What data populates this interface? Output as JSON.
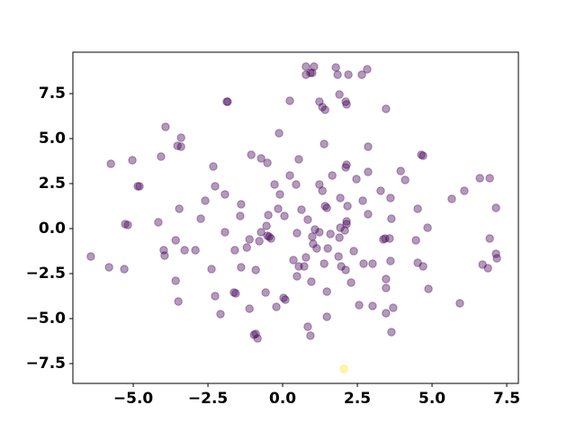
{
  "chart_data": {
    "type": "scatter",
    "alpha": 0.4,
    "xlim": [
      -7.02,
      7.89
    ],
    "ylim": [
      -8.6,
      9.8
    ],
    "xticks": [
      {
        "value": -5,
        "label": "−5.0"
      },
      {
        "value": -2.5,
        "label": "−2.5"
      },
      {
        "value": 0,
        "label": "0.0"
      },
      2.5,
      {
        "value": 5,
        "label": "5.0"
      },
      7.5
    ],
    "yticks": [
      {
        "value": -7.5,
        "label": "−7.5"
      },
      {
        "value": -5,
        "label": "−5.0"
      },
      {
        "value": -2.5,
        "label": "−2.5"
      },
      {
        "value": 0,
        "label": "0.0"
      },
      2.5,
      {
        "value": 5,
        "label": "5.0"
      },
      7.5
    ],
    "grid": false,
    "series": [
      {
        "color": "#440154",
        "x": [
          0.78,
          1.05,
          0.93,
          0.99,
          0.78,
          1.78,
          2.2,
          1.84,
          2.65,
          2.83,
          -1.87,
          -1.84,
          0.24,
          1.23,
          1.33,
          1.42,
          2.11,
          2.14,
          1.9,
          3.46,
          -3.92,
          -3.4,
          -3.52,
          -3.4,
          -4.07,
          -0.12,
          1.39,
          2.86,
          -5.75,
          -5.03,
          -4.79,
          -4.85,
          -2.32,
          -2.26,
          -1.05,
          -0.72,
          -0.51,
          0.54,
          1.66,
          2.11,
          2.14,
          2.47,
          2.86,
          3.28,
          3.61,
          3.95,
          4.1,
          4.7,
          4.64,
          5.66,
          6.08,
          6.6,
          6.93,
          7.14,
          -5.27,
          -5.18,
          -4.16,
          -3.46,
          -2.74,
          -2.59,
          -1.93,
          -1.39,
          -1.42,
          -1.93,
          -0.27,
          -0.09,
          0.24,
          0.45,
          1.23,
          1.33,
          1.48,
          1.42,
          1.93,
          2.17,
          2.14,
          2.14,
          2.68,
          2.86,
          3.64,
          4.52,
          4.85,
          3.58,
          3.43,
          3.37,
          1.93,
          2.08,
          0.63,
          0.84,
          0.48,
          0.06,
          -0.15,
          -0.48,
          -0.54,
          -0.45,
          -0.72,
          -0.39,
          -0.51,
          -0.78,
          -1.11,
          -1.6,
          -1.2,
          1.08,
          1.23,
          0.99,
          1.02,
          1.14,
          1.6,
          1.51,
          1.9,
          2.38,
          3.01,
          4.46,
          3.61,
          3.46,
          3.46,
          4.52,
          4.7,
          4.88,
          5.93,
          6.69,
          6.87,
          7.14,
          6.93,
          7.17,
          -6.42,
          -5.81,
          -5.3,
          -3.98,
          -3.58,
          -3.95,
          -3.28,
          -2.92,
          -2.38,
          -2.26,
          -1.63,
          -1.57,
          -1.39,
          -0.9,
          -0.57,
          -1.11,
          -2.08,
          -0.96,
          -0.84,
          -0.9,
          -0.21,
          0.03,
          0.09,
          0.36,
          0.54,
          0.72,
          0.78,
          0.48,
          0.96,
          1.39,
          1.48,
          1.87,
          1.96,
          2.11,
          2.29,
          2.71,
          2.56,
          3.01,
          3.46,
          3.7,
          3.64,
          1.48,
          0.84,
          0.93,
          -3.58,
          -3.49
        ],
        "values": [
          9.0,
          9.0,
          8.65,
          8.65,
          8.55,
          8.95,
          8.55,
          8.55,
          8.55,
          8.85,
          7.05,
          7.05,
          7.1,
          7.05,
          6.75,
          6.6,
          7.05,
          6.9,
          7.45,
          6.65,
          5.65,
          5.05,
          4.6,
          4.55,
          4.0,
          5.3,
          4.7,
          4.55,
          3.6,
          3.8,
          2.35,
          2.35,
          3.45,
          2.35,
          4.1,
          3.9,
          3.65,
          3.85,
          2.95,
          3.4,
          3.55,
          2.75,
          3.15,
          2.1,
          1.7,
          3.2,
          2.7,
          4.05,
          4.1,
          1.65,
          2.1,
          2.8,
          2.8,
          1.15,
          0.25,
          0.2,
          0.35,
          1.1,
          0.55,
          1.55,
          1.9,
          1.35,
          0.7,
          -0.2,
          2.45,
          1.9,
          2.95,
          2.45,
          2.45,
          2.1,
          1.15,
          1.25,
          1.7,
          1.25,
          0.4,
          0.25,
          1.55,
          0.8,
          0.55,
          1.1,
          0.05,
          -0.55,
          -0.55,
          -0.6,
          0.05,
          -0.1,
          1.05,
          0.5,
          -0.25,
          0.7,
          1.1,
          0.75,
          0.15,
          -0.45,
          -0.2,
          -0.55,
          -0.4,
          -0.7,
          -0.6,
          -1.2,
          -1.05,
          -0.05,
          -0.2,
          -0.45,
          -0.85,
          -1.1,
          -0.3,
          -1.1,
          -0.5,
          -1.25,
          -1.95,
          -0.65,
          -1.8,
          -2.8,
          -3.3,
          -1.9,
          -2.1,
          -3.35,
          -4.15,
          -2.0,
          -2.2,
          -1.4,
          -0.55,
          -1.65,
          -1.55,
          -2.15,
          -2.25,
          -1.2,
          -0.65,
          -1.5,
          -1.2,
          -1.2,
          -2.25,
          -3.75,
          -3.55,
          -3.6,
          -2.15,
          -2.3,
          -3.55,
          -4.45,
          -4.75,
          -5.9,
          -6.1,
          -5.85,
          -4.35,
          -3.85,
          -3.95,
          -1.75,
          -2.1,
          -2.1,
          -1.6,
          -2.65,
          -2.95,
          -1.95,
          -3.5,
          -1.55,
          -2.1,
          -2.3,
          -3.0,
          -1.95,
          -4.25,
          -4.3,
          -4.7,
          -4.4,
          -5.75,
          -4.9,
          -5.45,
          -5.95,
          -2.9,
          -4.05
        ]
      },
      {
        "color": "#fde725",
        "x": [
          2.05
        ],
        "values": [
          -7.8
        ]
      }
    ]
  }
}
